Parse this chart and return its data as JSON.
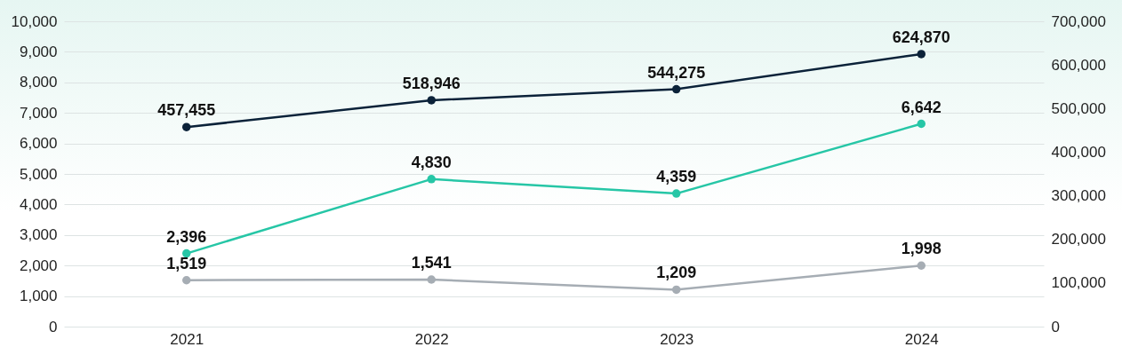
{
  "chart_data": {
    "type": "line",
    "categories": [
      "2021",
      "2022",
      "2023",
      "2024"
    ],
    "series": [
      {
        "color": "#0b2239",
        "values": [
          457455,
          518946,
          544275,
          624870
        ],
        "value_labels": [
          "457,455",
          "518,946",
          "544,275",
          "624,870"
        ],
        "axis": "y2"
      },
      {
        "color": "#26c6a6",
        "values": [
          2396,
          4830,
          4359,
          6642
        ],
        "value_labels": [
          "2,396",
          "4,830",
          "4,359",
          "6,642"
        ]
      },
      {
        "color": "#a6adb4",
        "values": [
          1519,
          1541,
          1209,
          1998
        ],
        "value_labels": [
          "1,519",
          "1,541",
          "1,209",
          "1,998"
        ]
      }
    ],
    "ylim": [
      0,
      10000
    ],
    "yticks": [
      0,
      {
        "value": 1000,
        "label": "1,000"
      },
      {
        "value": 2000,
        "label": "2,000"
      },
      {
        "value": 3000,
        "label": "3,000"
      },
      {
        "value": 4000,
        "label": "4,000"
      },
      {
        "value": 5000,
        "label": "5,000"
      },
      {
        "value": 6000,
        "label": "6,000"
      },
      {
        "value": 7000,
        "label": "7,000"
      },
      {
        "value": 8000,
        "label": "8,000"
      },
      {
        "value": 9000,
        "label": "9,000"
      },
      {
        "value": 10000,
        "label": "10,000"
      }
    ],
    "y2lim": [
      0,
      700000
    ],
    "y2ticks": [
      0,
      {
        "value": 100000,
        "label": "100,000"
      },
      {
        "value": 200000,
        "label": "200,000"
      },
      {
        "value": 300000,
        "label": "300,000"
      },
      {
        "value": 400000,
        "label": "400,000"
      },
      {
        "value": 500000,
        "label": "500,000"
      },
      {
        "value": 600000,
        "label": "600,000"
      },
      {
        "value": 700000,
        "label": "700,000"
      }
    ],
    "grid": "y",
    "marker": "circle",
    "line_style": "solid"
  }
}
